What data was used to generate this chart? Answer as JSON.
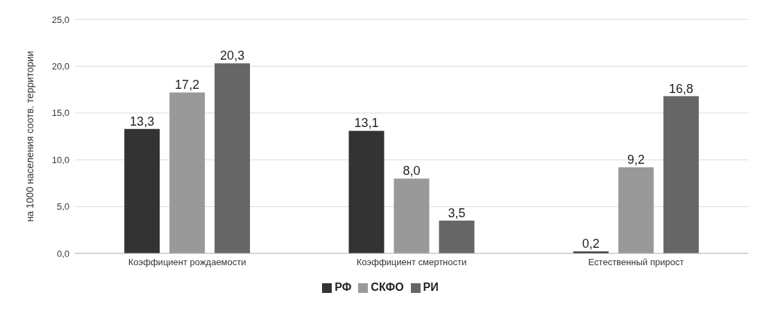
{
  "chart_data": {
    "type": "bar",
    "ylabel": "на 1000 населения соотв. территории",
    "categories": [
      "Коэффициент рождаемости",
      "Коэффициент смертности",
      "Естественный прирост"
    ],
    "series": [
      {
        "name": "РФ",
        "color": "#333333",
        "values": [
          13.3,
          13.1,
          0.2
        ],
        "value_labels": [
          "13,3",
          "13,1",
          "0,2"
        ]
      },
      {
        "name": "СКФО",
        "color": "#999999",
        "values": [
          17.2,
          8.0,
          9.2
        ],
        "value_labels": [
          "17,2",
          "8,0",
          "9,2"
        ]
      },
      {
        "name": "РИ",
        "color": "#666666",
        "values": [
          20.3,
          3.5,
          16.8
        ],
        "value_labels": [
          "20,3",
          "3,5",
          "16,8"
        ]
      }
    ],
    "ylim": [
      0,
      25
    ],
    "yticks": [
      {
        "value": 0,
        "label": "0,0"
      },
      {
        "value": 5,
        "label": "5,0"
      },
      {
        "value": 10,
        "label": "10,0"
      },
      {
        "value": 15,
        "label": "15,0"
      },
      {
        "value": 20,
        "label": "20,0"
      },
      {
        "value": 25,
        "label": "25,0"
      }
    ],
    "grid": "y",
    "legend": "bottom"
  }
}
